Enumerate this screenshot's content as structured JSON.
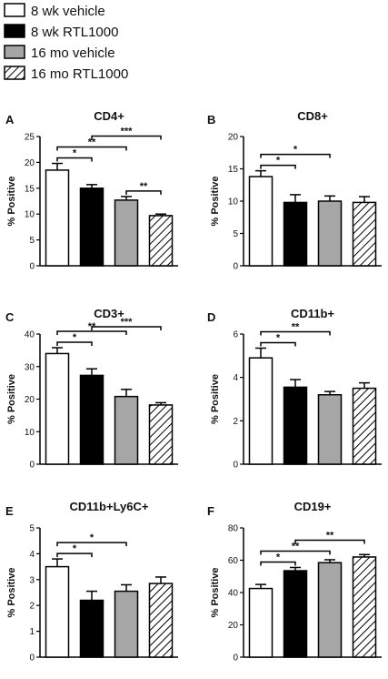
{
  "legend": {
    "position": "top-left",
    "items": [
      {
        "label": "8 wk vehicle",
        "fill": "white"
      },
      {
        "label": "8 wk RTL1000",
        "fill": "black"
      },
      {
        "label": "16 mo vehicle",
        "fill": "gray"
      },
      {
        "label": "16 mo RTL1000",
        "fill": "hatched"
      }
    ]
  },
  "colors": {
    "white": "#ffffff",
    "black": "#000000",
    "gray": "#a6a6a6",
    "stroke": "#000000"
  },
  "chart_data": [
    {
      "type": "bar",
      "letter": "A",
      "title": "CD4+",
      "xlabel": "",
      "ylabel": "% Positive",
      "categories": [
        "8 wk vehicle",
        "8 wk RTL1000",
        "16 mo vehicle",
        "16 mo RTL1000"
      ],
      "values": [
        18.5,
        15.0,
        12.7,
        9.7
      ],
      "errors": [
        1.3,
        0.7,
        0.7,
        0.3
      ],
      "ylim": [
        0,
        25
      ],
      "yticks": [
        "0",
        "5",
        "10",
        "15",
        "20",
        "25"
      ],
      "significance": [
        {
          "from": 0,
          "to": 1,
          "label": "*"
        },
        {
          "from": 0,
          "to": 2,
          "label": "**"
        },
        {
          "from": 1,
          "to": 3,
          "label": "***"
        },
        {
          "from": 2,
          "to": 3,
          "label": "**"
        }
      ]
    },
    {
      "type": "bar",
      "letter": "B",
      "title": "CD8+",
      "xlabel": "",
      "ylabel": "% Positive",
      "categories": [
        "8 wk vehicle",
        "8 wk RTL1000",
        "16 mo vehicle",
        "16 mo RTL1000"
      ],
      "values": [
        13.8,
        9.8,
        10.0,
        9.8
      ],
      "errors": [
        0.9,
        1.2,
        0.8,
        0.9
      ],
      "ylim": [
        0,
        20
      ],
      "yticks": [
        "0",
        "5",
        "10",
        "15",
        "20"
      ],
      "significance": [
        {
          "from": 0,
          "to": 1,
          "label": "*"
        },
        {
          "from": 0,
          "to": 2,
          "label": "*"
        }
      ]
    },
    {
      "type": "bar",
      "letter": "C",
      "title": "CD3+",
      "xlabel": "",
      "ylabel": "% Positive",
      "categories": [
        "8 wk vehicle",
        "8 wk RTL1000",
        "16 mo vehicle",
        "16 mo RTL1000"
      ],
      "values": [
        34.0,
        27.3,
        20.8,
        18.2
      ],
      "errors": [
        1.8,
        2.0,
        2.2,
        0.7
      ],
      "ylim": [
        0,
        40
      ],
      "yticks": [
        "0",
        "10",
        "20",
        "30",
        "40"
      ],
      "significance": [
        {
          "from": 0,
          "to": 1,
          "label": "*"
        },
        {
          "from": 0,
          "to": 2,
          "label": "**"
        },
        {
          "from": 1,
          "to": 3,
          "label": "***"
        }
      ]
    },
    {
      "type": "bar",
      "letter": "D",
      "title": "CD11b+",
      "xlabel": "",
      "ylabel": "% Positive",
      "categories": [
        "8 wk vehicle",
        "8 wk RTL1000",
        "16 mo vehicle",
        "16 mo RTL1000"
      ],
      "values": [
        4.9,
        3.55,
        3.2,
        3.5
      ],
      "errors": [
        0.45,
        0.35,
        0.15,
        0.25
      ],
      "ylim": [
        0,
        6
      ],
      "yticks": [
        "0",
        "2",
        "4",
        "6"
      ],
      "significance": [
        {
          "from": 0,
          "to": 1,
          "label": "*"
        },
        {
          "from": 0,
          "to": 2,
          "label": "**"
        }
      ]
    },
    {
      "type": "bar",
      "letter": "E",
      "title": "CD11b+Ly6C+",
      "xlabel": "",
      "ylabel": "% Positive",
      "categories": [
        "8 wk vehicle",
        "8 wk RTL1000",
        "16 mo vehicle",
        "16 mo RTL1000"
      ],
      "values": [
        3.5,
        2.2,
        2.55,
        2.85
      ],
      "errors": [
        0.3,
        0.35,
        0.25,
        0.25
      ],
      "ylim": [
        0,
        5
      ],
      "yticks": [
        "0",
        "1",
        "2",
        "3",
        "4",
        "5"
      ],
      "significance": [
        {
          "from": 0,
          "to": 1,
          "label": "*"
        },
        {
          "from": 0,
          "to": 2,
          "label": "*"
        }
      ]
    },
    {
      "type": "bar",
      "letter": "F",
      "title": "CD19+",
      "xlabel": "",
      "ylabel": "% Positive",
      "categories": [
        "8 wk vehicle",
        "8 wk RTL1000",
        "16 mo vehicle",
        "16 mo RTL1000"
      ],
      "values": [
        42.5,
        53.5,
        58.5,
        62.0
      ],
      "errors": [
        2.5,
        2.0,
        1.8,
        1.5
      ],
      "ylim": [
        0,
        80
      ],
      "yticks": [
        "0",
        "20",
        "40",
        "60",
        "80"
      ],
      "significance": [
        {
          "from": 0,
          "to": 1,
          "label": "*"
        },
        {
          "from": 0,
          "to": 2,
          "label": "**"
        },
        {
          "from": 1,
          "to": 3,
          "label": "**"
        }
      ]
    }
  ]
}
